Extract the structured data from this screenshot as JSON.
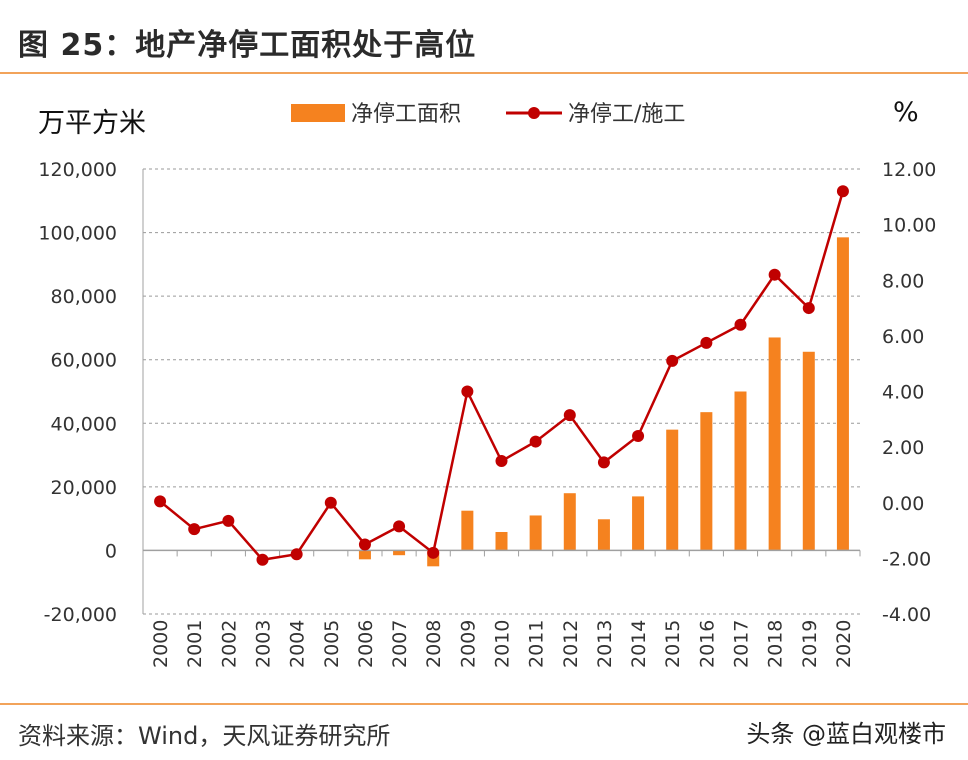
{
  "header": {
    "title": "图 25：地产净停工面积处于高位"
  },
  "footer": {
    "source": "资料来源：Wind，天风证券研究所",
    "watermark": "头条 @蓝白观楼市"
  },
  "colors": {
    "bar": "#f5821f",
    "line": "#c00000",
    "accent_rule": "#f2a35a"
  },
  "chart_data": {
    "type": "bar",
    "categories": [
      "2000",
      "2001",
      "2002",
      "2003",
      "2004",
      "2005",
      "2006",
      "2007",
      "2008",
      "2009",
      "2010",
      "2011",
      "2012",
      "2013",
      "2014",
      "2015",
      "2016",
      "2017",
      "2018",
      "2019",
      "2020"
    ],
    "left_unit": "万平方米",
    "right_unit": "%",
    "left_ylim": [
      -20000,
      120000
    ],
    "right_ylim": [
      -4,
      12
    ],
    "left_ticks": [
      "120,000",
      "100,000",
      "80,000",
      "60,000",
      "40,000",
      "20,000",
      "0",
      "-20,000"
    ],
    "left_tick_values": [
      120000,
      100000,
      80000,
      60000,
      40000,
      20000,
      0,
      -20000
    ],
    "right_ticks": [
      "12.00",
      "10.00",
      "8.00",
      "6.00",
      "4.00",
      "2.00",
      "0.00",
      "-2.00",
      "-4.00"
    ],
    "right_tick_values": [
      12,
      10,
      8,
      6,
      4,
      2,
      0,
      -2,
      -4
    ],
    "grid": true,
    "legend_position": "top-center",
    "series": [
      {
        "name": "净停工面积",
        "type": "bar",
        "axis": "left",
        "values": [
          0,
          0,
          0,
          0,
          0,
          0,
          -2800,
          -1500,
          -5000,
          12500,
          5800,
          11000,
          18000,
          9800,
          17000,
          38000,
          43500,
          50000,
          67000,
          62500,
          98500
        ]
      },
      {
        "name": "净停工/施工",
        "type": "line",
        "axis": "right",
        "values": [
          0.05,
          -0.95,
          -0.65,
          -2.05,
          -1.85,
          0.0,
          -1.5,
          -0.85,
          -1.8,
          4.0,
          1.5,
          2.2,
          3.15,
          1.45,
          2.4,
          5.1,
          5.75,
          6.4,
          8.2,
          7.0,
          11.2
        ]
      }
    ]
  }
}
